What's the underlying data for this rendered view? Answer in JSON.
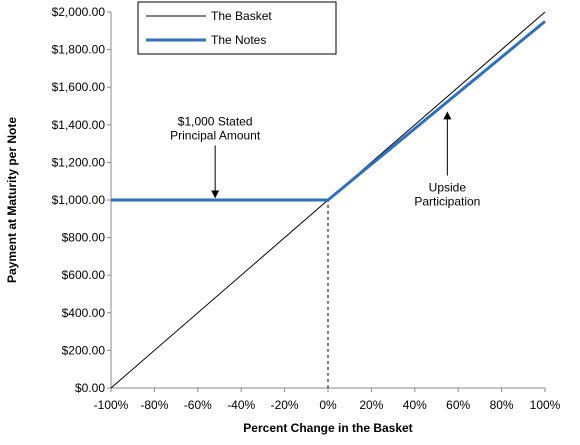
{
  "chart_data": {
    "type": "line",
    "xlabel": "Percent Change in the Basket",
    "ylabel": "Payment at Maturity per Note",
    "xlim": [
      -100,
      100
    ],
    "ylim": [
      0,
      2000
    ],
    "x_ticks": [
      -100,
      -80,
      -60,
      -40,
      -20,
      0,
      20,
      40,
      60,
      80,
      100
    ],
    "x_tick_labels": [
      "-100%",
      "-80%",
      "-60%",
      "-40%",
      "-20%",
      "0%",
      "20%",
      "40%",
      "60%",
      "80%",
      "100%"
    ],
    "y_ticks": [
      0,
      200,
      400,
      600,
      800,
      1000,
      1200,
      1400,
      1600,
      1800,
      2000
    ],
    "y_tick_labels": [
      "$0.00",
      "$200.00",
      "$400.00",
      "$600.00",
      "$800.00",
      "$1,000.00",
      "$1,200.00",
      "$1,400.00",
      "$1,600.00",
      "$1,800.00",
      "$2,000.00"
    ],
    "grid": false,
    "legend_position": "top",
    "series": [
      {
        "name": "The Basket",
        "color": "#000000",
        "x": [
          -100,
          100
        ],
        "y": [
          0,
          2000
        ]
      },
      {
        "name": "The Notes",
        "color": "#2e6fbe",
        "x": [
          -100,
          0,
          100
        ],
        "y": [
          1000,
          1000,
          1950
        ]
      }
    ],
    "reference_lines": [
      {
        "orientation": "vertical",
        "style": "dashed",
        "x": 0,
        "y": [
          0,
          1000
        ]
      }
    ],
    "annotations": [
      {
        "lines": [
          "$1,000 Stated",
          "Principal Amount"
        ],
        "arrow_x": -52,
        "arrow_from_y": 1290,
        "arrow_to_y": 1030,
        "arrow_direction": "down"
      },
      {
        "lines": [
          "Upside",
          "Participation"
        ],
        "arrow_x": 55,
        "arrow_from_y": 1130,
        "arrow_to_y": 1450,
        "arrow_direction": "up"
      }
    ]
  }
}
